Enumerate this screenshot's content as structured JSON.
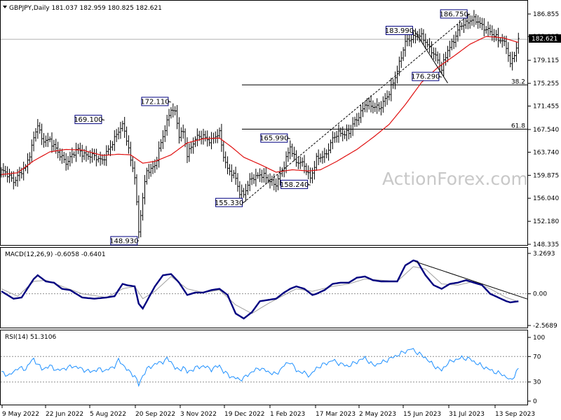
{
  "chart_data": {
    "type": "line",
    "symbol": "GBPJPY",
    "timeframe": "Daily",
    "header": "GBPJPY,Daily  181.037 182.959 180.825 182.621",
    "ohlc": {
      "open": 181.037,
      "high": 182.959,
      "low": 180.825,
      "close": 182.621
    },
    "current_price": "182.621",
    "watermark": "ActionForex.com",
    "price_axis_ticks": [
      "186.855",
      "183.095",
      "179.115",
      "175.255",
      "171.455",
      "167.540",
      "163.740",
      "159.875",
      "156.040",
      "152.180",
      "148.335"
    ],
    "price_ylim": [
      148.335,
      186.855
    ],
    "x_tick_labels": [
      "9 May 2022",
      "22 Jun 2022",
      "5 Aug 2022",
      "20 Sep 2022",
      "3 Nov 2022",
      "19 Dec 2022",
      "1 Feb 2023",
      "17 Mar 2023",
      "2 May 2023",
      "15 Jun 2023",
      "31 Jul 2023",
      "13 Sep 2023"
    ],
    "annotations": [
      {
        "label": "148.930",
        "bar": 68,
        "price": 148.93
      },
      {
        "label": "169.100",
        "bar": 51,
        "price": 169.1
      },
      {
        "label": "172.110",
        "bar": 84,
        "price": 172.11
      },
      {
        "label": "155.330",
        "bar": 120,
        "price": 155.33
      },
      {
        "label": "165.990",
        "bar": 143,
        "price": 165.99
      },
      {
        "label": "158.240",
        "bar": 153,
        "price": 158.24
      },
      {
        "label": "183.990",
        "bar": 205,
        "price": 183.99
      },
      {
        "label": "176.290",
        "bar": 218,
        "price": 176.29
      },
      {
        "label": "186.750",
        "bar": 232,
        "price": 186.75
      }
    ],
    "fib_levels": [
      {
        "label": "38.2",
        "price": 175.0
      },
      {
        "label": "61.8",
        "price": 167.6
      }
    ],
    "price_closes": [
      [
        0,
        160.6
      ],
      [
        6,
        159.1
      ],
      [
        12,
        161.0
      ],
      [
        16,
        166.2
      ],
      [
        18,
        168.3
      ],
      [
        20,
        165.6
      ],
      [
        24,
        166.0
      ],
      [
        28,
        163.5
      ],
      [
        32,
        162.2
      ],
      [
        38,
        164.1
      ],
      [
        44,
        163.0
      ],
      [
        50,
        162.6
      ],
      [
        54,
        164.4
      ],
      [
        58,
        167.6
      ],
      [
        60,
        168.3
      ],
      [
        62,
        165.8
      ],
      [
        64,
        162.2
      ],
      [
        66,
        160.1
      ],
      [
        68,
        150.5
      ],
      [
        70,
        156.1
      ],
      [
        72,
        160.4
      ],
      [
        76,
        161.7
      ],
      [
        80,
        166.2
      ],
      [
        82,
        168.8
      ],
      [
        84,
        171.3
      ],
      [
        86,
        170.4
      ],
      [
        88,
        166.4
      ],
      [
        90,
        167.0
      ],
      [
        92,
        163.6
      ],
      [
        96,
        165.8
      ],
      [
        100,
        166.6
      ],
      [
        104,
        165.5
      ],
      [
        108,
        167.0
      ],
      [
        110,
        163.4
      ],
      [
        112,
        160.8
      ],
      [
        116,
        159.3
      ],
      [
        118,
        157.2
      ],
      [
        120,
        156.8
      ],
      [
        124,
        159.3
      ],
      [
        128,
        160.2
      ],
      [
        132,
        159.0
      ],
      [
        136,
        158.6
      ],
      [
        140,
        161.2
      ],
      [
        143,
        164.9
      ],
      [
        146,
        162.2
      ],
      [
        150,
        161.4
      ],
      [
        153,
        159.6
      ],
      [
        156,
        162.4
      ],
      [
        160,
        163.2
      ],
      [
        164,
        165.9
      ],
      [
        168,
        167.0
      ],
      [
        172,
        167.1
      ],
      [
        176,
        169.2
      ],
      [
        180,
        171.9
      ],
      [
        184,
        171.2
      ],
      [
        188,
        171.6
      ],
      [
        192,
        173.4
      ],
      [
        196,
        177.6
      ],
      [
        200,
        181.9
      ],
      [
        203,
        182.9
      ],
      [
        206,
        183.6
      ],
      [
        210,
        182.1
      ],
      [
        214,
        180.5
      ],
      [
        218,
        177.4
      ],
      [
        221,
        181.1
      ],
      [
        224,
        182.4
      ],
      [
        228,
        185.1
      ],
      [
        232,
        185.9
      ],
      [
        236,
        185.5
      ],
      [
        240,
        184.5
      ],
      [
        244,
        183.0
      ],
      [
        248,
        182.6
      ],
      [
        250,
        181.4
      ],
      [
        252,
        178.1
      ],
      [
        254,
        180.2
      ],
      [
        256,
        182.6
      ]
    ],
    "sma": [
      [
        0,
        160.0
      ],
      [
        8,
        160.3
      ],
      [
        16,
        162.3
      ],
      [
        24,
        163.8
      ],
      [
        32,
        164.2
      ],
      [
        40,
        164.1
      ],
      [
        50,
        163.2
      ],
      [
        58,
        163.4
      ],
      [
        64,
        163.3
      ],
      [
        70,
        161.9
      ],
      [
        76,
        162.2
      ],
      [
        84,
        163.3
      ],
      [
        92,
        165.3
      ],
      [
        100,
        166.0
      ],
      [
        108,
        166.1
      ],
      [
        114,
        164.6
      ],
      [
        120,
        162.9
      ],
      [
        128,
        161.7
      ],
      [
        136,
        160.4
      ],
      [
        144,
        160.8
      ],
      [
        152,
        160.6
      ],
      [
        158,
        160.8
      ],
      [
        166,
        162.2
      ],
      [
        176,
        164.2
      ],
      [
        184,
        166.2
      ],
      [
        192,
        168.4
      ],
      [
        200,
        171.7
      ],
      [
        208,
        175.4
      ],
      [
        216,
        177.9
      ],
      [
        224,
        179.8
      ],
      [
        232,
        181.8
      ],
      [
        240,
        183.1
      ],
      [
        248,
        182.9
      ],
      [
        256,
        182.1
      ]
    ],
    "trendlines": [
      {
        "name": "support",
        "from": [
          120,
          155.33
        ],
        "to": [
          232,
          186.9
        ]
      },
      {
        "name": "down",
        "from": [
          205,
          183.8
        ],
        "to": [
          221,
          175.3
        ]
      }
    ],
    "macd": {
      "label": "MACD(12,26,9) -0.6058 -0.6401",
      "ticks": [
        "3.2693",
        "0.00",
        "-2.5689"
      ],
      "ylim": [
        -2.5689,
        3.2693
      ],
      "macd_line": [
        [
          0,
          0.2
        ],
        [
          6,
          -0.4
        ],
        [
          10,
          -0.3
        ],
        [
          16,
          1.2
        ],
        [
          18,
          1.5
        ],
        [
          22,
          1.0
        ],
        [
          26,
          0.9
        ],
        [
          30,
          0.4
        ],
        [
          34,
          0.3
        ],
        [
          40,
          -0.3
        ],
        [
          46,
          -0.4
        ],
        [
          52,
          -0.3
        ],
        [
          56,
          -0.2
        ],
        [
          60,
          0.8
        ],
        [
          62,
          0.7
        ],
        [
          66,
          0.6
        ],
        [
          68,
          -0.8
        ],
        [
          70,
          -1.2
        ],
        [
          72,
          -0.6
        ],
        [
          76,
          0.6
        ],
        [
          80,
          1.5
        ],
        [
          84,
          1.6
        ],
        [
          88,
          0.9
        ],
        [
          92,
          -0.1
        ],
        [
          96,
          0.1
        ],
        [
          100,
          0.1
        ],
        [
          104,
          0.3
        ],
        [
          108,
          0.4
        ],
        [
          112,
          -0.1
        ],
        [
          116,
          -1.6
        ],
        [
          120,
          -2.0
        ],
        [
          124,
          -1.5
        ],
        [
          128,
          -0.6
        ],
        [
          132,
          -0.5
        ],
        [
          136,
          -0.4
        ],
        [
          140,
          0.1
        ],
        [
          143,
          0.4
        ],
        [
          146,
          0.6
        ],
        [
          150,
          0.4
        ],
        [
          154,
          -0.1
        ],
        [
          156,
          0.0
        ],
        [
          160,
          0.3
        ],
        [
          164,
          0.8
        ],
        [
          168,
          0.9
        ],
        [
          172,
          0.9
        ],
        [
          176,
          1.3
        ],
        [
          180,
          1.4
        ],
        [
          184,
          1.1
        ],
        [
          188,
          1.0
        ],
        [
          192,
          1.0
        ],
        [
          196,
          1.0
        ],
        [
          200,
          2.3
        ],
        [
          204,
          2.7
        ],
        [
          206,
          2.6
        ],
        [
          210,
          1.5
        ],
        [
          214,
          0.7
        ],
        [
          218,
          0.4
        ],
        [
          222,
          0.8
        ],
        [
          226,
          0.9
        ],
        [
          230,
          1.1
        ],
        [
          234,
          0.9
        ],
        [
          238,
          0.7
        ],
        [
          242,
          0.0
        ],
        [
          246,
          -0.3
        ],
        [
          250,
          -0.6
        ],
        [
          252,
          -0.7
        ],
        [
          256,
          -0.61
        ]
      ],
      "signal_line": [
        [
          0,
          0.4
        ],
        [
          8,
          -0.2
        ],
        [
          16,
          1.0
        ],
        [
          22,
          1.1
        ],
        [
          30,
          0.6
        ],
        [
          40,
          0.0
        ],
        [
          52,
          -0.3
        ],
        [
          60,
          0.4
        ],
        [
          66,
          0.6
        ],
        [
          70,
          -0.4
        ],
        [
          76,
          0.2
        ],
        [
          84,
          1.4
        ],
        [
          92,
          0.4
        ],
        [
          100,
          0.1
        ],
        [
          108,
          0.3
        ],
        [
          116,
          -0.9
        ],
        [
          124,
          -1.6
        ],
        [
          132,
          -0.8
        ],
        [
          140,
          -0.1
        ],
        [
          146,
          0.4
        ],
        [
          154,
          0.2
        ],
        [
          164,
          0.6
        ],
        [
          172,
          0.8
        ],
        [
          180,
          1.2
        ],
        [
          188,
          1.1
        ],
        [
          196,
          1.0
        ],
        [
          204,
          2.2
        ],
        [
          210,
          2.0
        ],
        [
          218,
          0.8
        ],
        [
          226,
          0.7
        ],
        [
          234,
          1.0
        ],
        [
          242,
          0.4
        ],
        [
          250,
          -0.3
        ],
        [
          256,
          -0.64
        ]
      ],
      "trendline": {
        "from": [
          205,
          2.6
        ],
        "to": [
          256,
          -0.2
        ]
      }
    },
    "rsi": {
      "label": "RSI(14) 51.3106",
      "ticks": [
        "100",
        "70",
        "30",
        "0"
      ],
      "ylim": [
        0,
        100
      ],
      "levels": [
        70,
        30
      ],
      "values": [
        [
          0,
          45
        ],
        [
          4,
          40
        ],
        [
          8,
          52
        ],
        [
          12,
          50
        ],
        [
          14,
          60
        ],
        [
          16,
          66
        ],
        [
          18,
          58
        ],
        [
          20,
          50
        ],
        [
          24,
          55
        ],
        [
          28,
          48
        ],
        [
          32,
          52
        ],
        [
          36,
          55
        ],
        [
          40,
          50
        ],
        [
          44,
          46
        ],
        [
          48,
          50
        ],
        [
          52,
          48
        ],
        [
          56,
          55
        ],
        [
          58,
          64
        ],
        [
          60,
          58
        ],
        [
          62,
          50
        ],
        [
          64,
          44
        ],
        [
          66,
          40
        ],
        [
          68,
          25
        ],
        [
          70,
          40
        ],
        [
          72,
          50
        ],
        [
          76,
          58
        ],
        [
          80,
          62
        ],
        [
          82,
          66
        ],
        [
          84,
          62
        ],
        [
          86,
          52
        ],
        [
          88,
          48
        ],
        [
          90,
          54
        ],
        [
          92,
          45
        ],
        [
          96,
          52
        ],
        [
          100,
          55
        ],
        [
          104,
          50
        ],
        [
          108,
          56
        ],
        [
          110,
          46
        ],
        [
          114,
          38
        ],
        [
          118,
          34
        ],
        [
          120,
          36
        ],
        [
          124,
          46
        ],
        [
          128,
          52
        ],
        [
          132,
          46
        ],
        [
          136,
          42
        ],
        [
          140,
          56
        ],
        [
          143,
          62
        ],
        [
          146,
          48
        ],
        [
          150,
          44
        ],
        [
          153,
          40
        ],
        [
          156,
          52
        ],
        [
          160,
          58
        ],
        [
          164,
          64
        ],
        [
          168,
          58
        ],
        [
          172,
          55
        ],
        [
          176,
          62
        ],
        [
          180,
          68
        ],
        [
          184,
          56
        ],
        [
          188,
          60
        ],
        [
          192,
          66
        ],
        [
          196,
          72
        ],
        [
          200,
          78
        ],
        [
          203,
          82
        ],
        [
          206,
          76
        ],
        [
          210,
          68
        ],
        [
          214,
          56
        ],
        [
          218,
          48
        ],
        [
          221,
          60
        ],
        [
          224,
          64
        ],
        [
          228,
          68
        ],
        [
          232,
          66
        ],
        [
          236,
          58
        ],
        [
          240,
          52
        ],
        [
          244,
          46
        ],
        [
          248,
          42
        ],
        [
          250,
          38
        ],
        [
          252,
          32
        ],
        [
          254,
          40
        ],
        [
          256,
          51
        ]
      ]
    }
  }
}
